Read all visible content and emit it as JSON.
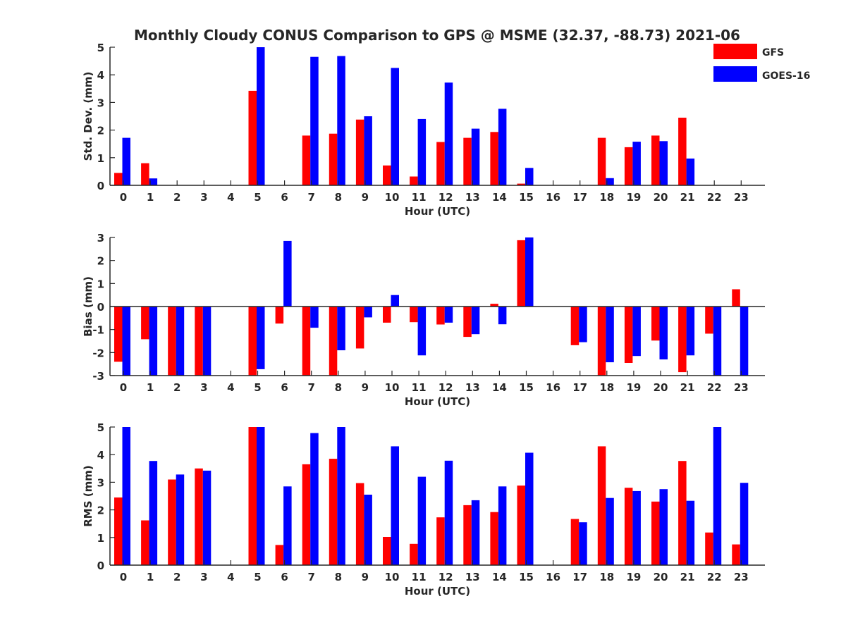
{
  "title": "Monthly Cloudy CONUS Comparison to GPS @ MSME (32.37, -88.73) 2021-06",
  "legend": {
    "position": "top-right",
    "entries": [
      {
        "label": "GFS",
        "color": "#ff0000"
      },
      {
        "label": "GOES-16",
        "color": "#0000ff"
      }
    ]
  },
  "chart_data": [
    {
      "type": "bar",
      "xlabel": "Hour (UTC)",
      "ylabel": "Std. Dev. (mm)",
      "ylim": [
        0,
        5
      ],
      "yticks": [
        0,
        1,
        2,
        3,
        4,
        5
      ],
      "categories": [
        "0",
        "1",
        "2",
        "3",
        "4",
        "5",
        "6",
        "7",
        "8",
        "9",
        "10",
        "11",
        "12",
        "13",
        "14",
        "15",
        "16",
        "17",
        "18",
        "19",
        "20",
        "21",
        "22",
        "23"
      ],
      "series": [
        {
          "name": "GFS",
          "color": "#ff0000",
          "values": [
            0.45,
            0.8,
            null,
            null,
            null,
            3.42,
            null,
            1.8,
            1.87,
            2.38,
            0.72,
            0.32,
            1.57,
            1.72,
            1.93,
            0.06,
            null,
            null,
            1.72,
            1.38,
            1.8,
            2.45,
            null,
            null
          ]
        },
        {
          "name": "GOES-16",
          "color": "#0000ff",
          "values": [
            1.72,
            0.25,
            null,
            null,
            null,
            5.0,
            null,
            4.65,
            4.68,
            2.5,
            4.25,
            2.4,
            3.72,
            2.05,
            2.77,
            0.63,
            null,
            null,
            0.26,
            1.58,
            1.6,
            0.97,
            null,
            null
          ]
        }
      ]
    },
    {
      "type": "bar",
      "xlabel": "Hour (UTC)",
      "ylabel": "Bias (mm)",
      "ylim": [
        -3,
        3
      ],
      "yticks": [
        -3,
        -2,
        -1,
        0,
        1,
        2,
        3
      ],
      "categories": [
        "0",
        "1",
        "2",
        "3",
        "4",
        "5",
        "6",
        "7",
        "8",
        "9",
        "10",
        "11",
        "12",
        "13",
        "14",
        "15",
        "16",
        "17",
        "18",
        "19",
        "20",
        "21",
        "22",
        "23"
      ],
      "series": [
        {
          "name": "GFS",
          "color": "#ff0000",
          "values": [
            -2.4,
            -1.42,
            -3.0,
            -3.0,
            null,
            -3.0,
            -0.74,
            -3.0,
            -3.0,
            -1.82,
            -0.7,
            -0.68,
            -0.78,
            -1.32,
            0.12,
            2.88,
            null,
            -1.68,
            -3.0,
            -2.45,
            -1.48,
            -2.85,
            -1.18,
            0.75
          ]
        },
        {
          "name": "GOES-16",
          "color": "#0000ff",
          "values": [
            -3.0,
            -3.0,
            -3.0,
            -3.0,
            null,
            -2.72,
            2.85,
            -0.92,
            -1.9,
            -0.47,
            0.5,
            -2.12,
            -0.7,
            -1.2,
            -0.77,
            3.0,
            null,
            -1.55,
            -2.42,
            -2.15,
            -2.3,
            -2.12,
            -3.0,
            -3.0
          ]
        }
      ]
    },
    {
      "type": "bar",
      "xlabel": "Hour (UTC)",
      "ylabel": "RMS (mm)",
      "ylim": [
        0,
        5
      ],
      "yticks": [
        0,
        1,
        2,
        3,
        4,
        5
      ],
      "categories": [
        "0",
        "1",
        "2",
        "3",
        "4",
        "5",
        "6",
        "7",
        "8",
        "9",
        "10",
        "11",
        "12",
        "13",
        "14",
        "15",
        "16",
        "17",
        "18",
        "19",
        "20",
        "21",
        "22",
        "23"
      ],
      "series": [
        {
          "name": "GFS",
          "color": "#ff0000",
          "values": [
            2.45,
            1.62,
            3.1,
            3.5,
            null,
            5.0,
            0.73,
            3.65,
            3.85,
            2.97,
            1.02,
            0.77,
            1.73,
            2.17,
            1.92,
            2.88,
            null,
            1.67,
            4.3,
            2.8,
            2.3,
            3.77,
            1.18,
            0.75
          ]
        },
        {
          "name": "GOES-16",
          "color": "#0000ff",
          "values": [
            5.0,
            3.77,
            3.28,
            3.42,
            null,
            5.0,
            2.85,
            4.78,
            5.0,
            2.55,
            4.3,
            3.2,
            3.78,
            2.35,
            2.85,
            4.07,
            null,
            1.55,
            2.43,
            2.68,
            2.75,
            2.33,
            5.0,
            2.98
          ]
        }
      ]
    }
  ]
}
